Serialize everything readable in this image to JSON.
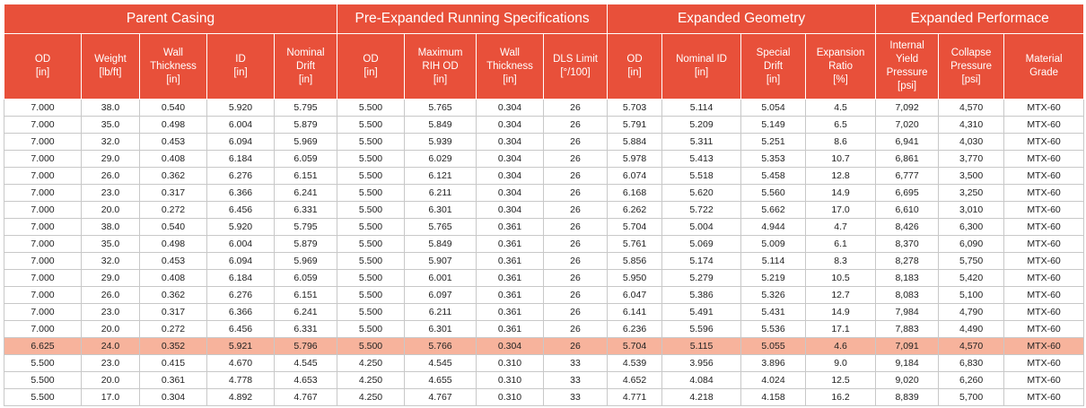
{
  "table": {
    "groups": [
      {
        "title": "Parent Casing",
        "columns": [
          [
            "OD",
            "[in]"
          ],
          [
            "Weight",
            "[lb/ft]"
          ],
          [
            "Wall",
            "Thickness",
            "[in]"
          ],
          [
            "ID",
            "[in]"
          ],
          [
            "Nominal",
            "Drift",
            "[in]"
          ]
        ]
      },
      {
        "title": "Pre-Expanded Running Specifications",
        "columns": [
          [
            "OD",
            "[in]"
          ],
          [
            "Maximum",
            "RIH OD",
            "[in]"
          ],
          [
            "Wall",
            "Thickness",
            "[in]"
          ],
          [
            "DLS Limit",
            "[°/100]"
          ]
        ]
      },
      {
        "title": "Expanded Geometry",
        "columns": [
          [
            "OD",
            "[in]"
          ],
          [
            "Nominal ID",
            "[in]"
          ],
          [
            "Special",
            "Drift",
            "[in]"
          ],
          [
            "Expansion",
            "Ratio",
            "[%]"
          ]
        ]
      },
      {
        "title": "Expanded Performace",
        "columns": [
          [
            "Internal",
            "Yield",
            "Pressure",
            "[psi]"
          ],
          [
            "Collapse",
            "Pressure",
            "[psi]"
          ],
          [
            "Material",
            "Grade"
          ]
        ]
      }
    ],
    "rows": [
      [
        "7.000",
        "38.0",
        "0.540",
        "5.920",
        "5.795",
        "5.500",
        "5.765",
        "0.304",
        "26",
        "5.703",
        "5.114",
        "5.054",
        "4.5",
        "7,092",
        "4,570",
        "MTX-60"
      ],
      [
        "7.000",
        "35.0",
        "0.498",
        "6.004",
        "5.879",
        "5.500",
        "5.849",
        "0.304",
        "26",
        "5.791",
        "5.209",
        "5.149",
        "6.5",
        "7,020",
        "4,310",
        "MTX-60"
      ],
      [
        "7.000",
        "32.0",
        "0.453",
        "6.094",
        "5.969",
        "5.500",
        "5.939",
        "0.304",
        "26",
        "5.884",
        "5.311",
        "5.251",
        "8.6",
        "6,941",
        "4,030",
        "MTX-60"
      ],
      [
        "7.000",
        "29.0",
        "0.408",
        "6.184",
        "6.059",
        "5.500",
        "6.029",
        "0.304",
        "26",
        "5.978",
        "5.413",
        "5.353",
        "10.7",
        "6,861",
        "3,770",
        "MTX-60"
      ],
      [
        "7.000",
        "26.0",
        "0.362",
        "6.276",
        "6.151",
        "5.500",
        "6.121",
        "0.304",
        "26",
        "6.074",
        "5.518",
        "5.458",
        "12.8",
        "6,777",
        "3,500",
        "MTX-60"
      ],
      [
        "7.000",
        "23.0",
        "0.317",
        "6.366",
        "6.241",
        "5.500",
        "6.211",
        "0.304",
        "26",
        "6.168",
        "5.620",
        "5.560",
        "14.9",
        "6,695",
        "3,250",
        "MTX-60"
      ],
      [
        "7.000",
        "20.0",
        "0.272",
        "6.456",
        "6.331",
        "5.500",
        "6.301",
        "0.304",
        "26",
        "6.262",
        "5.722",
        "5.662",
        "17.0",
        "6,610",
        "3,010",
        "MTX-60"
      ],
      [
        "7.000",
        "38.0",
        "0.540",
        "5.920",
        "5.795",
        "5.500",
        "5.765",
        "0.361",
        "26",
        "5.704",
        "5.004",
        "4.944",
        "4.7",
        "8,426",
        "6,300",
        "MTX-60"
      ],
      [
        "7.000",
        "35.0",
        "0.498",
        "6.004",
        "5.879",
        "5.500",
        "5.849",
        "0.361",
        "26",
        "5.761",
        "5.069",
        "5.009",
        "6.1",
        "8,370",
        "6,090",
        "MTX-60"
      ],
      [
        "7.000",
        "32.0",
        "0.453",
        "6.094",
        "5.969",
        "5.500",
        "5.907",
        "0.361",
        "26",
        "5.856",
        "5.174",
        "5.114",
        "8.3",
        "8,278",
        "5,750",
        "MTX-60"
      ],
      [
        "7.000",
        "29.0",
        "0.408",
        "6.184",
        "6.059",
        "5.500",
        "6.001",
        "0.361",
        "26",
        "5.950",
        "5.279",
        "5.219",
        "10.5",
        "8,183",
        "5,420",
        "MTX-60"
      ],
      [
        "7.000",
        "26.0",
        "0.362",
        "6.276",
        "6.151",
        "5.500",
        "6.097",
        "0.361",
        "26",
        "6.047",
        "5.386",
        "5.326",
        "12.7",
        "8,083",
        "5,100",
        "MTX-60"
      ],
      [
        "7.000",
        "23.0",
        "0.317",
        "6.366",
        "6.241",
        "5.500",
        "6.211",
        "0.361",
        "26",
        "6.141",
        "5.491",
        "5.431",
        "14.9",
        "7,984",
        "4,790",
        "MTX-60"
      ],
      [
        "7.000",
        "20.0",
        "0.272",
        "6.456",
        "6.331",
        "5.500",
        "6.301",
        "0.361",
        "26",
        "6.236",
        "5.596",
        "5.536",
        "17.1",
        "7,883",
        "4,490",
        "MTX-60"
      ],
      [
        "6.625",
        "24.0",
        "0.352",
        "5.921",
        "5.796",
        "5.500",
        "5.766",
        "0.304",
        "26",
        "5.704",
        "5.115",
        "5.055",
        "4.6",
        "7,091",
        "4,570",
        "MTX-60"
      ],
      [
        "5.500",
        "23.0",
        "0.415",
        "4.670",
        "4.545",
        "4.250",
        "4.545",
        "0.310",
        "33",
        "4.539",
        "3.956",
        "3.896",
        "9.0",
        "9,184",
        "6,830",
        "MTX-60"
      ],
      [
        "5.500",
        "20.0",
        "0.361",
        "4.778",
        "4.653",
        "4.250",
        "4.655",
        "0.310",
        "33",
        "4.652",
        "4.084",
        "4.024",
        "12.5",
        "9,020",
        "6,260",
        "MTX-60"
      ],
      [
        "5.500",
        "17.0",
        "0.304",
        "4.892",
        "4.767",
        "4.250",
        "4.767",
        "0.310",
        "33",
        "4.771",
        "4.218",
        "4.158",
        "16.2",
        "8,839",
        "5,700",
        "MTX-60"
      ]
    ]
  }
}
